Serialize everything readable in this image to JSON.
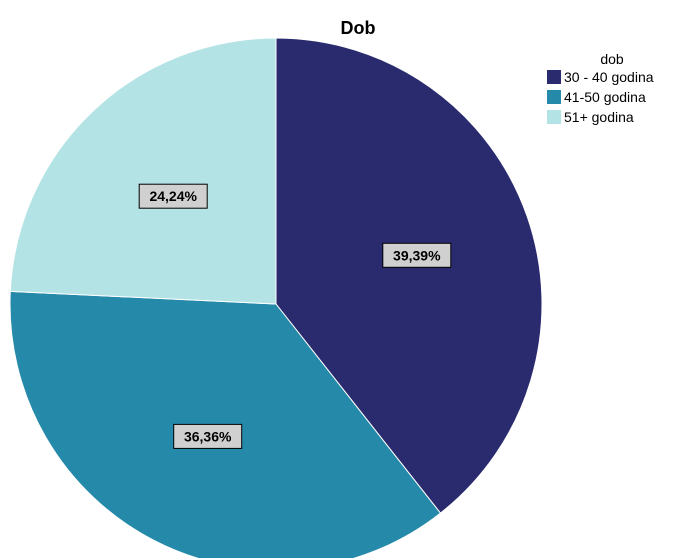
{
  "chart_data": {
    "type": "pie",
    "title": "Dob",
    "legend": {
      "title": "dob",
      "position": "top-right"
    },
    "slices": [
      {
        "label": "30 - 40 godina",
        "value": 39.39,
        "display": "39,39%",
        "color": "#2a2a6e"
      },
      {
        "label": "41-50 godina",
        "value": 36.36,
        "display": "36,36%",
        "color": "#2589a9"
      },
      {
        "label": "51+ godina",
        "value": 24.24,
        "display": "24,24%",
        "color": "#b4e3e6"
      }
    ]
  }
}
